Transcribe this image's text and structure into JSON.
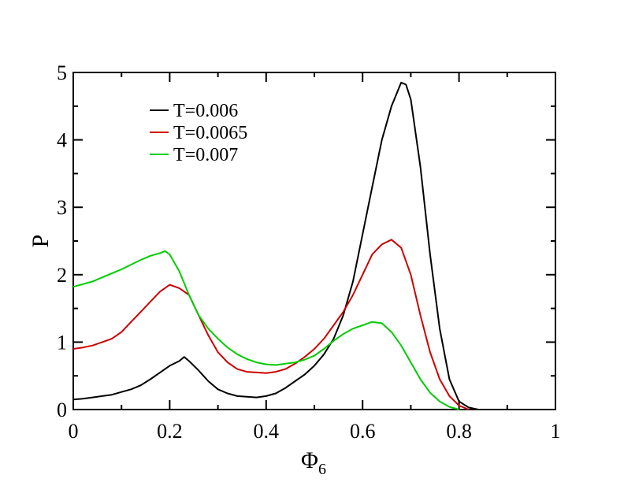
{
  "chart_data": {
    "type": "line",
    "xlabel": "Φ",
    "xlabel_subscript": "6",
    "ylabel": "P",
    "xlim": [
      0,
      1
    ],
    "ylim": [
      0,
      5
    ],
    "xticks": [
      "0",
      "0.2",
      "0.4",
      "0.6",
      "0.8",
      "1"
    ],
    "yticks": [
      "0",
      "1",
      "2",
      "3",
      "4",
      "5"
    ],
    "grid": false,
    "legend_position": "top-left",
    "series": [
      {
        "name": "T=0.006",
        "color": "#000000",
        "x": [
          0.0,
          0.02,
          0.04,
          0.06,
          0.08,
          0.1,
          0.12,
          0.14,
          0.16,
          0.18,
          0.2,
          0.22,
          0.23,
          0.24,
          0.26,
          0.28,
          0.3,
          0.32,
          0.34,
          0.36,
          0.38,
          0.4,
          0.42,
          0.44,
          0.46,
          0.48,
          0.5,
          0.52,
          0.54,
          0.56,
          0.58,
          0.6,
          0.62,
          0.64,
          0.66,
          0.68,
          0.69,
          0.7,
          0.72,
          0.74,
          0.76,
          0.78,
          0.8,
          0.82,
          0.84
        ],
        "y": [
          0.15,
          0.16,
          0.18,
          0.2,
          0.22,
          0.26,
          0.3,
          0.36,
          0.45,
          0.55,
          0.65,
          0.72,
          0.78,
          0.72,
          0.58,
          0.42,
          0.3,
          0.24,
          0.2,
          0.19,
          0.18,
          0.2,
          0.24,
          0.32,
          0.42,
          0.52,
          0.65,
          0.82,
          1.05,
          1.4,
          1.9,
          2.6,
          3.3,
          4.0,
          4.5,
          4.85,
          4.82,
          4.6,
          3.6,
          2.3,
          1.2,
          0.45,
          0.12,
          0.03,
          0.0
        ]
      },
      {
        "name": "T=0.0065",
        "color": "#cc0000",
        "x": [
          0.0,
          0.02,
          0.04,
          0.06,
          0.08,
          0.1,
          0.12,
          0.14,
          0.16,
          0.18,
          0.2,
          0.22,
          0.24,
          0.26,
          0.28,
          0.3,
          0.32,
          0.34,
          0.36,
          0.38,
          0.4,
          0.42,
          0.44,
          0.46,
          0.48,
          0.5,
          0.52,
          0.54,
          0.56,
          0.58,
          0.6,
          0.62,
          0.64,
          0.66,
          0.68,
          0.7,
          0.72,
          0.74,
          0.76,
          0.78,
          0.8,
          0.82
        ],
        "y": [
          0.9,
          0.92,
          0.95,
          1.0,
          1.05,
          1.15,
          1.3,
          1.45,
          1.6,
          1.75,
          1.85,
          1.8,
          1.7,
          1.4,
          1.1,
          0.85,
          0.7,
          0.6,
          0.56,
          0.55,
          0.54,
          0.56,
          0.6,
          0.68,
          0.78,
          0.9,
          1.05,
          1.25,
          1.45,
          1.7,
          2.0,
          2.3,
          2.45,
          2.52,
          2.4,
          2.0,
          1.4,
          0.85,
          0.45,
          0.2,
          0.06,
          0.0
        ]
      },
      {
        "name": "T=0.007",
        "color": "#00cc00",
        "x": [
          0.0,
          0.02,
          0.04,
          0.06,
          0.08,
          0.1,
          0.12,
          0.14,
          0.16,
          0.18,
          0.19,
          0.2,
          0.22,
          0.24,
          0.26,
          0.28,
          0.3,
          0.32,
          0.34,
          0.36,
          0.38,
          0.4,
          0.42,
          0.44,
          0.46,
          0.48,
          0.5,
          0.52,
          0.54,
          0.56,
          0.58,
          0.6,
          0.62,
          0.64,
          0.66,
          0.68,
          0.7,
          0.72,
          0.74,
          0.76,
          0.78,
          0.8
        ],
        "y": [
          1.82,
          1.86,
          1.9,
          1.96,
          2.02,
          2.08,
          2.15,
          2.22,
          2.28,
          2.32,
          2.35,
          2.3,
          2.05,
          1.7,
          1.4,
          1.2,
          1.05,
          0.92,
          0.82,
          0.75,
          0.7,
          0.67,
          0.66,
          0.68,
          0.7,
          0.74,
          0.8,
          0.9,
          1.02,
          1.12,
          1.2,
          1.25,
          1.3,
          1.28,
          1.15,
          0.95,
          0.7,
          0.45,
          0.25,
          0.12,
          0.04,
          0.0
        ]
      }
    ]
  }
}
